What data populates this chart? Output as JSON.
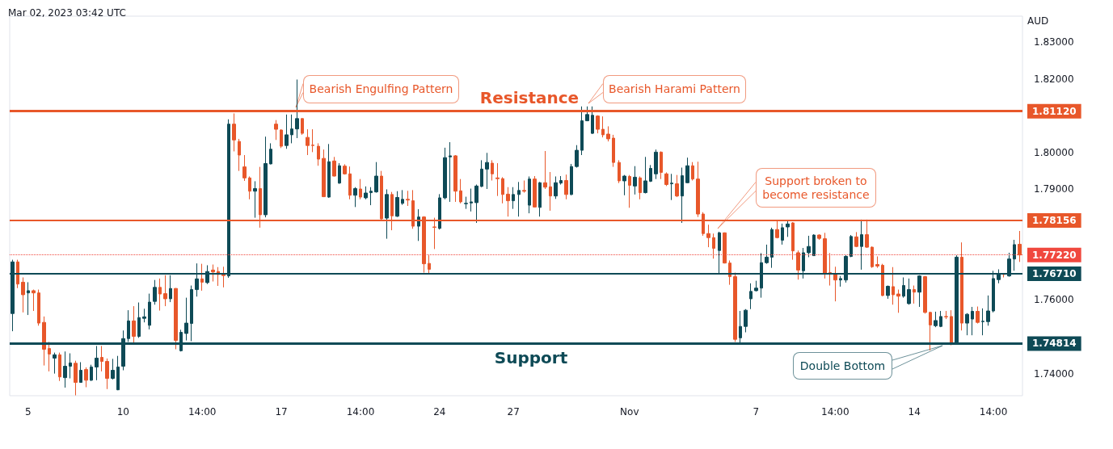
{
  "chart_data": {
    "type": "candlestick",
    "annotations": [
      "Mar 02, 2023 03:42 UTC",
      "Resistance",
      "Support",
      "Bearish Engulfing Pattern",
      "Bearish Harami Pattern",
      "Support broken to become resistance",
      "Double Bottom"
    ],
    "ylabel": "AUD",
    "colors": [
      "#0e4a56",
      "#e8572a",
      "#e8572a",
      "#0e4a56",
      "#e8572a",
      "#e8572a",
      "#e8572a",
      "#e8572a",
      "#0e4a56",
      "#e8572a",
      "#0e4a56",
      "#0e4a56",
      "#e8572a",
      "#0e4a56",
      "#e8572a",
      "#0e4a56",
      "#0e4a56",
      "#e8572a",
      "#e8572a",
      "#0e4a56",
      "#0e4a56",
      "#0e4a56",
      "#0e4a56",
      "#e8572a",
      "#0e4a56",
      "#0e4a56",
      "#0e4a56",
      "#0e4a56",
      "#e8572a",
      "#e8572a",
      "#0e4a56",
      "#e8572a",
      "#0e4a56",
      "#0e4a56",
      "#0e4a56",
      "#0e4a56",
      "#e8572a",
      "#0e4a56",
      "#e8572a",
      "#e8572a",
      "#e8572a",
      "#0e4a56",
      "#e8572a",
      "#e8572a",
      "#e8572a",
      "#e8572a",
      "#0e4a56",
      "#e8572a",
      "#0e4a56",
      "#0e4a56",
      "#e8572a",
      "#e8572a",
      "#0e4a56",
      "#0e4a56",
      "#0e4a56",
      "#e8572a",
      "#e8572a",
      "#e8572a",
      "#e8572a",
      "#e8572a",
      "#0e4a56",
      "#e8572a",
      "#0e4a56",
      "#e8572a",
      "#e8572a",
      "#0e4a56",
      "#e8572a",
      "#0e4a56",
      "#0e4a56",
      "#0e4a56",
      "#e8572a",
      "#0e4a56",
      "#e8572a",
      "#0e4a56",
      "#0e4a56",
      "#e8572a",
      "#e8572a",
      "#0e4a56",
      "#e8572a",
      "#e8572a",
      "#e8572a",
      "#0e4a56",
      "#0e4a56",
      "#0e4a56",
      "#e8572a",
      "#e8572a",
      "#0e4a56",
      "#0e4a56",
      "#0e4a56",
      "#0e4a56",
      "#0e4a56",
      "#e8572a",
      "#e8572a",
      "#e8572a",
      "#e8572a",
      "#0e4a56",
      "#0e4a56",
      "#e8572a",
      "#0e4a56",
      "#e8572a",
      "#0e4a56",
      "#e8572a",
      "#e8572a",
      "#0e4a56",
      "#0e4a56",
      "#e8572a",
      "#0e4a56",
      "#0e4a56",
      "#0e4a56",
      "#0e4a56",
      "#0e4a56",
      "#e8572a",
      "#e8572a",
      "#e8572a",
      "#e8572a",
      "#e8572a",
      "#0e4a56",
      "#e8572a",
      "#0e4a56",
      "#e8572a",
      "#0e4a56",
      "#0e4a56",
      "#0e4a56",
      "#e8572a",
      "#e8572a",
      "#0e4a56",
      "#e8572a",
      "#0e4a56",
      "#0e4a56",
      "#e8572a",
      "#e8572a",
      "#e8572a",
      "#e8572a",
      "#e8572a",
      "#0e4a56",
      "#e8572a",
      "#e8572a",
      "#e8572a",
      "#0e4a56",
      "#0e4a56",
      "#0e4a56",
      "#0e4a56",
      "#0e4a56",
      "#0e4a56",
      "#0e4a56",
      "#e8572a",
      "#0e4a56",
      "#0e4a56",
      "#e8572a",
      "#e8572a",
      "#0e4a56",
      "#0e4a56",
      "#0e4a56",
      "#e8572a",
      "#e8572a",
      "#e8572a",
      "#e8572a",
      "#0e4a56",
      "#0e4a56",
      "#0e4a56",
      "#e8572a",
      "#0e4a56",
      "#e8572a",
      "#e8572a",
      "#e8572a",
      "#e8572a",
      "#0e4a56",
      "#e8572a",
      "#e8572a",
      "#0e4a56",
      "#0e4a56",
      "#e8572a",
      "#0e4a56",
      "#e8572a",
      "#e8572a",
      "#0e4a56",
      "#0e4a56",
      "#e8572a",
      "#e8572a",
      "#0e4a56",
      "#e8572a",
      "#0e4a56",
      "#0e4a56",
      "#e8572a",
      "#0e4a56",
      "#0e4a56",
      "#0e4a56",
      "#0e4a56",
      "#e8572a",
      "#0e4a56",
      "#0e4a56",
      "#e8572a"
    ],
    "categories": [
      null,
      null,
      null,
      "5",
      null,
      null,
      null,
      null,
      null,
      null,
      null,
      null,
      null,
      null,
      null,
      null,
      null,
      null,
      null,
      null,
      null,
      "10",
      null,
      null,
      null,
      null,
      null,
      null,
      null,
      null,
      null,
      null,
      null,
      null,
      null,
      null,
      "14:00",
      null,
      null,
      null,
      null,
      null,
      null,
      null,
      null,
      null,
      null,
      null,
      null,
      null,
      null,
      "17",
      null,
      null,
      null,
      null,
      null,
      null,
      null,
      null,
      null,
      null,
      null,
      null,
      null,
      null,
      "14:00",
      null,
      null,
      null,
      null,
      null,
      null,
      null,
      null,
      null,
      null,
      null,
      null,
      null,
      null,
      "24",
      null,
      null,
      null,
      null,
      null,
      null,
      null,
      null,
      null,
      null,
      null,
      null,
      null,
      "27",
      null,
      null,
      null,
      null,
      null,
      null,
      null,
      null,
      null,
      null,
      null,
      null,
      null,
      null,
      null,
      null,
      null,
      null,
      null,
      null,
      null,
      "Nov",
      null,
      null,
      null,
      null,
      null,
      null,
      null,
      null,
      null,
      null,
      null,
      null,
      null,
      null,
      null,
      null,
      null,
      null,
      null,
      null,
      null,
      null,
      null,
      "7",
      null,
      null,
      null,
      null,
      null,
      null,
      null,
      null,
      null,
      null,
      null,
      null,
      null,
      null,
      "14:00",
      null,
      null,
      null,
      null,
      null,
      null,
      null,
      null,
      null,
      null,
      null,
      null,
      null,
      null,
      "14",
      null,
      null,
      null,
      null,
      null,
      null,
      null,
      null,
      null,
      null,
      null,
      null,
      null,
      null,
      "14:00",
      null,
      null,
      null,
      null,
      null
    ],
    "ohlc": [
      [
        1.7563,
        1.7709,
        1.7515,
        1.7703
      ],
      [
        1.7703,
        1.7709,
        1.7632,
        1.7643
      ],
      [
        1.7648,
        1.7661,
        1.7566,
        1.7614
      ],
      [
        1.7619,
        1.7648,
        1.7559,
        1.7625
      ],
      [
        1.7625,
        1.7628,
        1.757,
        1.7619
      ],
      [
        1.7619,
        1.7628,
        1.753,
        1.7537
      ],
      [
        1.7539,
        1.7555,
        1.7422,
        1.7466
      ],
      [
        1.7468,
        1.7486,
        1.7406,
        1.7453
      ],
      [
        1.7442,
        1.7457,
        1.74,
        1.7451
      ],
      [
        1.7451,
        1.7457,
        1.738,
        1.7391
      ],
      [
        1.7389,
        1.746,
        1.7362,
        1.742
      ],
      [
        1.742,
        1.7455,
        1.7387,
        1.7429
      ],
      [
        1.7428,
        1.7435,
        1.7341,
        1.7376
      ],
      [
        1.7376,
        1.7431,
        1.7376,
        1.7409
      ],
      [
        1.7411,
        1.7417,
        1.7363,
        1.7382
      ],
      [
        1.7382,
        1.7424,
        1.738,
        1.7418
      ],
      [
        1.7418,
        1.7475,
        1.7382,
        1.7442
      ],
      [
        1.7444,
        1.7475,
        1.7406,
        1.7433
      ],
      [
        1.7433,
        1.7441,
        1.7358,
        1.7387
      ],
      [
        1.7387,
        1.744,
        1.7384,
        1.7409
      ],
      [
        1.7356,
        1.7448,
        1.7355,
        1.7418
      ],
      [
        1.742,
        1.7517,
        1.7409,
        1.7495
      ],
      [
        1.7495,
        1.7572,
        1.7486,
        1.7543
      ],
      [
        1.7543,
        1.7583,
        1.7482,
        1.7501
      ],
      [
        1.7501,
        1.7593,
        1.7497,
        1.7552
      ],
      [
        1.755,
        1.7576,
        1.7539,
        1.7554
      ],
      [
        1.7531,
        1.7617,
        1.752,
        1.7594
      ],
      [
        1.7596,
        1.7654,
        1.7587,
        1.7634
      ],
      [
        1.7634,
        1.7658,
        1.7571,
        1.7616
      ],
      [
        1.7617,
        1.7667,
        1.7583,
        1.7603
      ],
      [
        1.7603,
        1.7667,
        1.7594,
        1.7631
      ],
      [
        1.7631,
        1.7632,
        1.7466,
        1.749
      ],
      [
        1.7462,
        1.7519,
        1.746,
        1.7512
      ],
      [
        1.7509,
        1.7606,
        1.749,
        1.7537
      ],
      [
        1.7536,
        1.7639,
        1.7488,
        1.7628
      ],
      [
        1.7628,
        1.7699,
        1.7609,
        1.7657
      ],
      [
        1.7657,
        1.7698,
        1.7625,
        1.7648
      ],
      [
        1.7647,
        1.7694,
        1.7643,
        1.7677
      ],
      [
        1.7681,
        1.7696,
        1.765,
        1.7676
      ],
      [
        1.7677,
        1.7689,
        1.7638,
        1.7669
      ],
      [
        1.7669,
        1.769,
        1.7634,
        1.7666
      ],
      [
        1.7665,
        1.809,
        1.766,
        1.8077
      ],
      [
        1.8077,
        1.8106,
        1.8003,
        1.8034
      ],
      [
        1.803,
        1.8037,
        1.795,
        1.7993
      ],
      [
        1.7961,
        1.7993,
        1.7923,
        1.7931
      ],
      [
        1.7931,
        1.7935,
        1.7873,
        1.7895
      ],
      [
        1.7895,
        1.7922,
        1.7823,
        1.7902
      ],
      [
        1.7902,
        1.7961,
        1.7796,
        1.7831
      ],
      [
        1.7831,
        1.8043,
        1.7824,
        1.797
      ],
      [
        1.7969,
        1.8025,
        1.7968,
        1.8009
      ],
      [
        1.8077,
        1.8088,
        1.8034,
        1.8063
      ],
      [
        1.8061,
        1.8063,
        1.8012,
        1.8017
      ],
      [
        1.8019,
        1.8103,
        1.801,
        1.8048
      ],
      [
        1.8048,
        1.8103,
        1.8025,
        1.8064
      ],
      [
        1.8064,
        1.8198,
        1.8039,
        1.8092
      ],
      [
        1.8092,
        1.8093,
        1.8048,
        1.8052
      ],
      [
        1.8041,
        1.8063,
        1.7993,
        1.8019
      ],
      [
        1.802,
        1.8063,
        1.8001,
        1.8019
      ],
      [
        1.8017,
        1.8025,
        1.7964,
        1.7982
      ],
      [
        1.7984,
        1.8008,
        1.7879,
        1.788
      ],
      [
        1.7879,
        1.8023,
        1.7877,
        1.7975
      ],
      [
        1.7977,
        1.7988,
        1.7935,
        1.7936
      ],
      [
        1.7917,
        1.7971,
        1.7915,
        1.7964
      ],
      [
        1.7963,
        1.7968,
        1.794,
        1.7942
      ],
      [
        1.7942,
        1.7962,
        1.7873,
        1.7884
      ],
      [
        1.7884,
        1.7906,
        1.7852,
        1.7902
      ],
      [
        1.7901,
        1.7928,
        1.7873,
        1.7879
      ],
      [
        1.7877,
        1.7908,
        1.7873,
        1.789
      ],
      [
        1.7891,
        1.7906,
        1.7857,
        1.7895
      ],
      [
        1.7893,
        1.7974,
        1.7891,
        1.7936
      ],
      [
        1.7936,
        1.795,
        1.7818,
        1.782
      ],
      [
        1.7822,
        1.79,
        1.7766,
        1.7886
      ],
      [
        1.7886,
        1.7893,
        1.7789,
        1.7828
      ],
      [
        1.7827,
        1.7895,
        1.7825,
        1.7878
      ],
      [
        1.7862,
        1.7898,
        1.7858,
        1.7873
      ],
      [
        1.7873,
        1.7896,
        1.7855,
        1.7871
      ],
      [
        1.7869,
        1.7898,
        1.7793,
        1.78
      ],
      [
        1.78,
        1.7846,
        1.776,
        1.7825
      ],
      [
        1.7825,
        1.7827,
        1.7674,
        1.7698
      ],
      [
        1.7699,
        1.7721,
        1.7672,
        1.7683
      ],
      [
        1.7798,
        1.7823,
        1.7738,
        1.7797
      ],
      [
        1.7794,
        1.7887,
        1.7791,
        1.7877
      ],
      [
        1.7877,
        1.8013,
        1.7873,
        1.7986
      ],
      [
        1.7988,
        1.8028,
        1.7866,
        1.7991
      ],
      [
        1.7991,
        1.7993,
        1.7866,
        1.7895
      ],
      [
        1.7896,
        1.7928,
        1.7862,
        1.7866
      ],
      [
        1.7861,
        1.788,
        1.7847,
        1.7862
      ],
      [
        1.7863,
        1.7902,
        1.784,
        1.7866
      ],
      [
        1.7864,
        1.7913,
        1.7809,
        1.7909
      ],
      [
        1.7908,
        1.7979,
        1.7906,
        1.7955
      ],
      [
        1.7955,
        1.7999,
        1.7901,
        1.7973
      ],
      [
        1.7971,
        1.7979,
        1.7924,
        1.7942
      ],
      [
        1.7931,
        1.7971,
        1.7882,
        1.7929
      ],
      [
        1.7929,
        1.7933,
        1.7862,
        1.7886
      ],
      [
        1.7887,
        1.7906,
        1.7826,
        1.7869
      ],
      [
        1.7869,
        1.7906,
        1.7847,
        1.7886
      ],
      [
        1.7886,
        1.792,
        1.7826,
        1.7897
      ],
      [
        1.7897,
        1.7924,
        1.7891,
        1.7895
      ],
      [
        1.7857,
        1.7935,
        1.7835,
        1.7928
      ],
      [
        1.7928,
        1.7936,
        1.7851,
        1.7852
      ],
      [
        1.7851,
        1.792,
        1.7826,
        1.7918
      ],
      [
        1.7918,
        1.8004,
        1.7901,
        1.7906
      ],
      [
        1.7907,
        1.7947,
        1.7842,
        1.7882
      ],
      [
        1.7882,
        1.7935,
        1.7874,
        1.7918
      ],
      [
        1.7917,
        1.7936,
        1.7913,
        1.7924
      ],
      [
        1.7924,
        1.794,
        1.7873,
        1.7886
      ],
      [
        1.7886,
        1.7969,
        1.7884,
        1.7962
      ],
      [
        1.7962,
        1.802,
        1.7959,
        1.8006
      ],
      [
        1.8006,
        1.8125,
        1.7993,
        1.8086
      ],
      [
        1.8086,
        1.8125,
        1.8085,
        1.8103
      ],
      [
        1.8052,
        1.8125,
        1.805,
        1.8101
      ],
      [
        1.8099,
        1.8101,
        1.8052,
        1.8063
      ],
      [
        1.8063,
        1.8098,
        1.8041,
        1.8048
      ],
      [
        1.805,
        1.8071,
        1.803,
        1.8037
      ],
      [
        1.8039,
        1.8048,
        1.7961,
        1.7973
      ],
      [
        1.7973,
        1.7979,
        1.7917,
        1.7923
      ],
      [
        1.7923,
        1.7939,
        1.7884,
        1.7936
      ],
      [
        1.7935,
        1.7939,
        1.785,
        1.7911
      ],
      [
        1.7909,
        1.7963,
        1.7886,
        1.7933
      ],
      [
        1.7931,
        1.7935,
        1.7873,
        1.7891
      ],
      [
        1.7891,
        1.7988,
        1.7889,
        1.7923
      ],
      [
        1.7922,
        1.7966,
        1.792,
        1.7957
      ],
      [
        1.7942,
        1.8008,
        1.7928,
        1.8001
      ],
      [
        1.8001,
        1.8003,
        1.7928,
        1.7946
      ],
      [
        1.7942,
        1.7946,
        1.7909,
        1.7913
      ],
      [
        1.7915,
        1.7942,
        1.7871,
        1.7917
      ],
      [
        1.7915,
        1.7939,
        1.7879,
        1.7882
      ],
      [
        1.7882,
        1.7959,
        1.7809,
        1.7937
      ],
      [
        1.7918,
        1.7986,
        1.7917,
        1.7964
      ],
      [
        1.7964,
        1.7974,
        1.7924,
        1.7928
      ],
      [
        1.7928,
        1.7975,
        1.7825,
        1.7833
      ],
      [
        1.7833,
        1.7838,
        1.7774,
        1.778
      ],
      [
        1.778,
        1.7804,
        1.7743,
        1.7769
      ],
      [
        1.7769,
        1.778,
        1.7712,
        1.774
      ],
      [
        1.7734,
        1.7785,
        1.7672,
        1.7782
      ],
      [
        1.7782,
        1.7783,
        1.7699,
        1.77
      ],
      [
        1.77,
        1.7707,
        1.7641,
        1.7663
      ],
      [
        1.7663,
        1.7674,
        1.7486,
        1.7493
      ],
      [
        1.7497,
        1.757,
        1.7484,
        1.7528
      ],
      [
        1.7528,
        1.7575,
        1.7512,
        1.7572
      ],
      [
        1.7603,
        1.7645,
        1.7575,
        1.7623
      ],
      [
        1.7625,
        1.7652,
        1.7623,
        1.7632
      ],
      [
        1.7632,
        1.7727,
        1.7606,
        1.7701
      ],
      [
        1.7701,
        1.775,
        1.7698,
        1.7716
      ],
      [
        1.7716,
        1.7796,
        1.7687,
        1.7791
      ],
      [
        1.7791,
        1.7815,
        1.7767,
        1.7769
      ],
      [
        1.7762,
        1.7807,
        1.775,
        1.7796
      ],
      [
        1.7798,
        1.7816,
        1.7771,
        1.7806
      ],
      [
        1.7809,
        1.7811,
        1.7709,
        1.7733
      ],
      [
        1.7728,
        1.7734,
        1.7655,
        1.7681
      ],
      [
        1.7679,
        1.7741,
        1.7658,
        1.7728
      ],
      [
        1.7728,
        1.7774,
        1.7716,
        1.7745
      ],
      [
        1.772,
        1.7778,
        1.772,
        1.7776
      ],
      [
        1.7776,
        1.7778,
        1.7763,
        1.7767
      ],
      [
        1.7766,
        1.7782,
        1.7658,
        1.7672
      ],
      [
        1.7674,
        1.7727,
        1.7639,
        1.767
      ],
      [
        1.7669,
        1.769,
        1.7596,
        1.7654
      ],
      [
        1.7654,
        1.7665,
        1.7636,
        1.7658
      ],
      [
        1.7654,
        1.7723,
        1.7647,
        1.7718
      ],
      [
        1.7718,
        1.7776,
        1.7716,
        1.7772
      ],
      [
        1.7771,
        1.7784,
        1.7743,
        1.7745
      ],
      [
        1.7745,
        1.7818,
        1.7682,
        1.7777
      ],
      [
        1.7777,
        1.7818,
        1.7741,
        1.7743
      ],
      [
        1.7743,
        1.7745,
        1.7687,
        1.769
      ],
      [
        1.7696,
        1.7718,
        1.7687,
        1.7692
      ],
      [
        1.7694,
        1.7698,
        1.761,
        1.7612
      ],
      [
        1.7612,
        1.7639,
        1.7603,
        1.7637
      ],
      [
        1.7636,
        1.7689,
        1.7587,
        1.7614
      ],
      [
        1.7616,
        1.7628,
        1.7565,
        1.761
      ],
      [
        1.761,
        1.7661,
        1.7606,
        1.7639
      ],
      [
        1.759,
        1.7658,
        1.7587,
        1.7628
      ],
      [
        1.7628,
        1.7639,
        1.759,
        1.7621
      ],
      [
        1.7621,
        1.7667,
        1.7581,
        1.7665
      ],
      [
        1.7663,
        1.7665,
        1.7563,
        1.7566
      ],
      [
        1.7566,
        1.7568,
        1.7463,
        1.7532
      ],
      [
        1.753,
        1.7568,
        1.7526,
        1.7544
      ],
      [
        1.7528,
        1.757,
        1.7526,
        1.7555
      ],
      [
        1.7555,
        1.757,
        1.7548,
        1.7554
      ],
      [
        1.7555,
        1.7572,
        1.7477,
        1.748
      ],
      [
        1.7482,
        1.7721,
        1.7479,
        1.7716
      ],
      [
        1.7716,
        1.7756,
        1.7517,
        1.7537
      ],
      [
        1.7537,
        1.7564,
        1.7504,
        1.7561
      ],
      [
        1.7548,
        1.7581,
        1.7504,
        1.7569
      ],
      [
        1.7569,
        1.7582,
        1.7536,
        1.7539
      ],
      [
        1.7541,
        1.7577,
        1.7504,
        1.7542
      ],
      [
        1.7541,
        1.7612,
        1.753,
        1.757
      ],
      [
        1.757,
        1.7679,
        1.7566,
        1.7658
      ],
      [
        1.7655,
        1.7683,
        1.7645,
        1.7672
      ],
      [
        1.7672,
        1.7672,
        1.7661,
        1.7669
      ],
      [
        1.7665,
        1.7728,
        1.7663,
        1.7711
      ],
      [
        1.7711,
        1.7763,
        1.7679,
        1.775
      ],
      [
        1.7751,
        1.7787,
        1.7703,
        1.7722
      ]
    ],
    "ylim": [
      1.734,
      1.837
    ],
    "yticks": [
      {
        "value": 1.74,
        "label": "1.74000"
      },
      {
        "value": 1.76,
        "label": "1.76000"
      },
      {
        "value": 1.79,
        "label": "1.79000"
      },
      {
        "value": 1.8,
        "label": "1.80000"
      },
      {
        "value": 1.82,
        "label": "1.82000"
      },
      {
        "value": 1.83,
        "label": "1.83000"
      }
    ],
    "ref_lines": [
      {
        "axis": "y",
        "value": 1.8112,
        "label": "1.81120",
        "color": "#e8572a"
      },
      {
        "axis": "y",
        "value": 1.78156,
        "label": "1.78156",
        "color": "#e8572a"
      },
      {
        "axis": "y",
        "value": 1.7671,
        "label": "1.76710",
        "color": "#0e4a56"
      },
      {
        "axis": "y",
        "value": 1.74814,
        "label": "1.74814",
        "color": "#0e4a56"
      },
      {
        "axis": "y",
        "value": 1.7722,
        "label": "1.77220",
        "color": "#f0483e",
        "line_style": "dotted"
      }
    ]
  }
}
